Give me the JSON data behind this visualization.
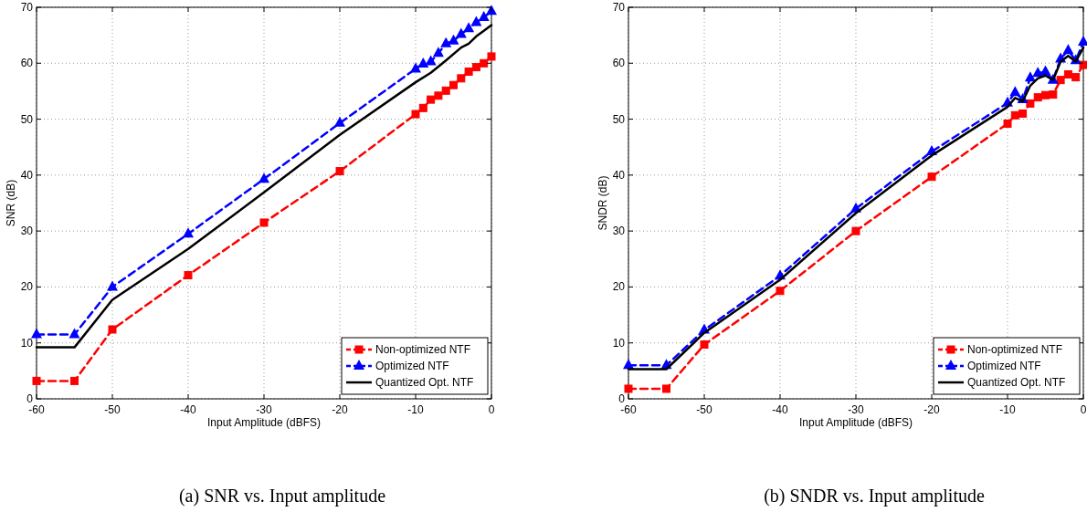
{
  "chart_data": [
    {
      "type": "line",
      "title": "(a) SNR vs. Input amplitude",
      "xlabel": "Input Amplitude (dBFS)",
      "ylabel": "SNR (dB)",
      "xlim": [
        -60,
        0
      ],
      "xticks": [
        -60,
        -50,
        -40,
        -30,
        -20,
        -10,
        0
      ],
      "ylim": [
        0,
        70
      ],
      "yticks": [
        0,
        10,
        20,
        30,
        40,
        50,
        60,
        70
      ],
      "grid": true,
      "legend": "bottom right",
      "series": [
        {
          "name": "Non-optimized NTF",
          "color": "#ff0000",
          "marker": "square",
          "line_style": "dashed",
          "x": [
            -60,
            -55,
            -50,
            -40,
            -30,
            -20,
            -10,
            -9,
            -8,
            -7,
            -6,
            -5,
            -4,
            -3,
            -2,
            -1,
            0
          ],
          "values": [
            3.2,
            3.2,
            12.4,
            22.1,
            31.5,
            40.7,
            50.9,
            52,
            53.5,
            54.2,
            55.1,
            56.1,
            57.3,
            58.5,
            59.3,
            60,
            61.2
          ]
        },
        {
          "name": "Optimized NTF",
          "color": "#0000ff",
          "marker": "triangle",
          "line_style": "dashed",
          "x": [
            -60,
            -55,
            -50,
            -40,
            -30,
            -20,
            -10,
            -9,
            -8,
            -7,
            -6,
            -5,
            -4,
            -3,
            -2,
            -1,
            0
          ],
          "values": [
            11.5,
            11.5,
            20,
            29.5,
            39.3,
            49.3,
            59,
            59.9,
            60.3,
            61.8,
            63.5,
            64,
            65.2,
            66.2,
            67.3,
            68.2,
            69.3
          ]
        },
        {
          "name": "Quantized Opt. NTF",
          "color": "#000000",
          "marker": "none",
          "line_style": "solid",
          "x": [
            -60,
            -55,
            -50,
            -40,
            -30,
            -20,
            -10,
            -8,
            -6,
            -4,
            -3,
            -2,
            -1,
            0
          ],
          "values": [
            9.2,
            9.2,
            17.7,
            26.8,
            36.9,
            47.2,
            56.6,
            58.3,
            60.5,
            62.8,
            63.5,
            64.8,
            65.8,
            66.8
          ]
        }
      ]
    },
    {
      "type": "line",
      "title": "(b) SNDR vs. Input amplitude",
      "xlabel": "Input Amplitude (dBFS)",
      "ylabel": "SNDR (dB)",
      "xlim": [
        -60,
        0
      ],
      "xticks": [
        -60,
        -50,
        -40,
        -30,
        -20,
        -10,
        0
      ],
      "ylim": [
        0,
        70
      ],
      "yticks": [
        0,
        10,
        20,
        30,
        40,
        50,
        60,
        70
      ],
      "grid": true,
      "legend": "bottom right",
      "series": [
        {
          "name": "Non-optimized NTF",
          "color": "#ff0000",
          "marker": "square",
          "line_style": "dashed",
          "x": [
            -60,
            -55,
            -50,
            -40,
            -30,
            -20,
            -10,
            -9,
            -8,
            -7,
            -6,
            -5,
            -4,
            -3,
            -2,
            -1,
            0
          ],
          "values": [
            1.8,
            1.8,
            9.7,
            19.3,
            30,
            39.7,
            49.2,
            50.7,
            51,
            52.8,
            53.9,
            54.3,
            54.4,
            57,
            58,
            57.5,
            59.7
          ]
        },
        {
          "name": "Optimized NTF",
          "color": "#0000ff",
          "marker": "triangle",
          "line_style": "dashed",
          "x": [
            -60,
            -55,
            -50,
            -40,
            -30,
            -20,
            -10,
            -9,
            -8,
            -7,
            -6,
            -5,
            -4,
            -3,
            -2,
            -1,
            0
          ],
          "values": [
            6,
            6,
            12.3,
            22,
            34,
            44.2,
            52.9,
            54.8,
            53.5,
            57.4,
            58.2,
            58.5,
            57,
            60.8,
            62.3,
            60.5,
            63.8
          ]
        },
        {
          "name": "Quantized Opt. NTF",
          "color": "#000000",
          "marker": "none",
          "line_style": "solid",
          "x": [
            -60,
            -55,
            -50,
            -40,
            -30,
            -20,
            -10,
            -9,
            -8,
            -7,
            -6,
            -5,
            -4,
            -3,
            -2,
            -1,
            0
          ],
          "values": [
            5.3,
            5.3,
            11.8,
            21.3,
            33.2,
            43.5,
            52.2,
            53.8,
            53.2,
            56,
            57.3,
            57.8,
            57,
            60.3,
            61.3,
            60.3,
            62.8
          ]
        }
      ]
    }
  ]
}
